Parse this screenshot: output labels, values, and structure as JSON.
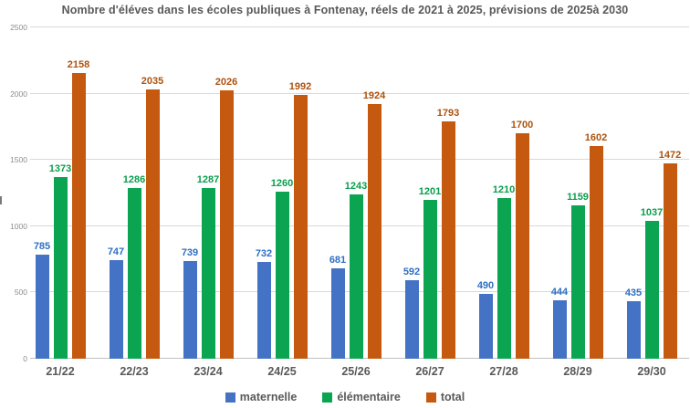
{
  "title": "Nombre d'éléves dans les écoles publiques à Fontenay, réels de 2021 à 2025, prévisions de 2025à 2030",
  "colors": {
    "background": "#ffffff",
    "title_text": "#595959",
    "category_text": "#595959",
    "tick_text": "#8c8c8c",
    "gridline": "#d9d9d9",
    "axis_line": "#c0c0c0"
  },
  "chart_data": {
    "type": "bar",
    "title": "Nombre d'éléves dans les écoles publiques à Fontenay, réels de 2021 à 2025, prévisions de 2025à 2030",
    "categories": [
      "21/22",
      "22/23",
      "23/24",
      "24/25",
      "25/26",
      "26/27",
      "27/28",
      "28/29",
      "29/30"
    ],
    "series": [
      {
        "name": "maternelle",
        "color": "#4472c4",
        "label_color": "#2e6fc3",
        "values": [
          785,
          747,
          739,
          732,
          681,
          592,
          490,
          444,
          435
        ]
      },
      {
        "name": "élémentaire",
        "color": "#0ba551",
        "label_color": "#0a9e4c",
        "values": [
          1373,
          1286,
          1287,
          1260,
          1243,
          1201,
          1210,
          1159,
          1037
        ]
      },
      {
        "name": "total",
        "color": "#c4590f",
        "label_color": "#ad530f",
        "values": [
          2158,
          2035,
          2026,
          1992,
          1924,
          1793,
          1700,
          1602,
          1472
        ]
      }
    ],
    "xlabel": "",
    "ylabel": "",
    "ylim": [
      0,
      2500
    ],
    "yticks": [
      0,
      500,
      1000,
      1500,
      2000,
      2500
    ],
    "grid": "horizontal",
    "legend_position": "bottom",
    "data_labels": true
  }
}
